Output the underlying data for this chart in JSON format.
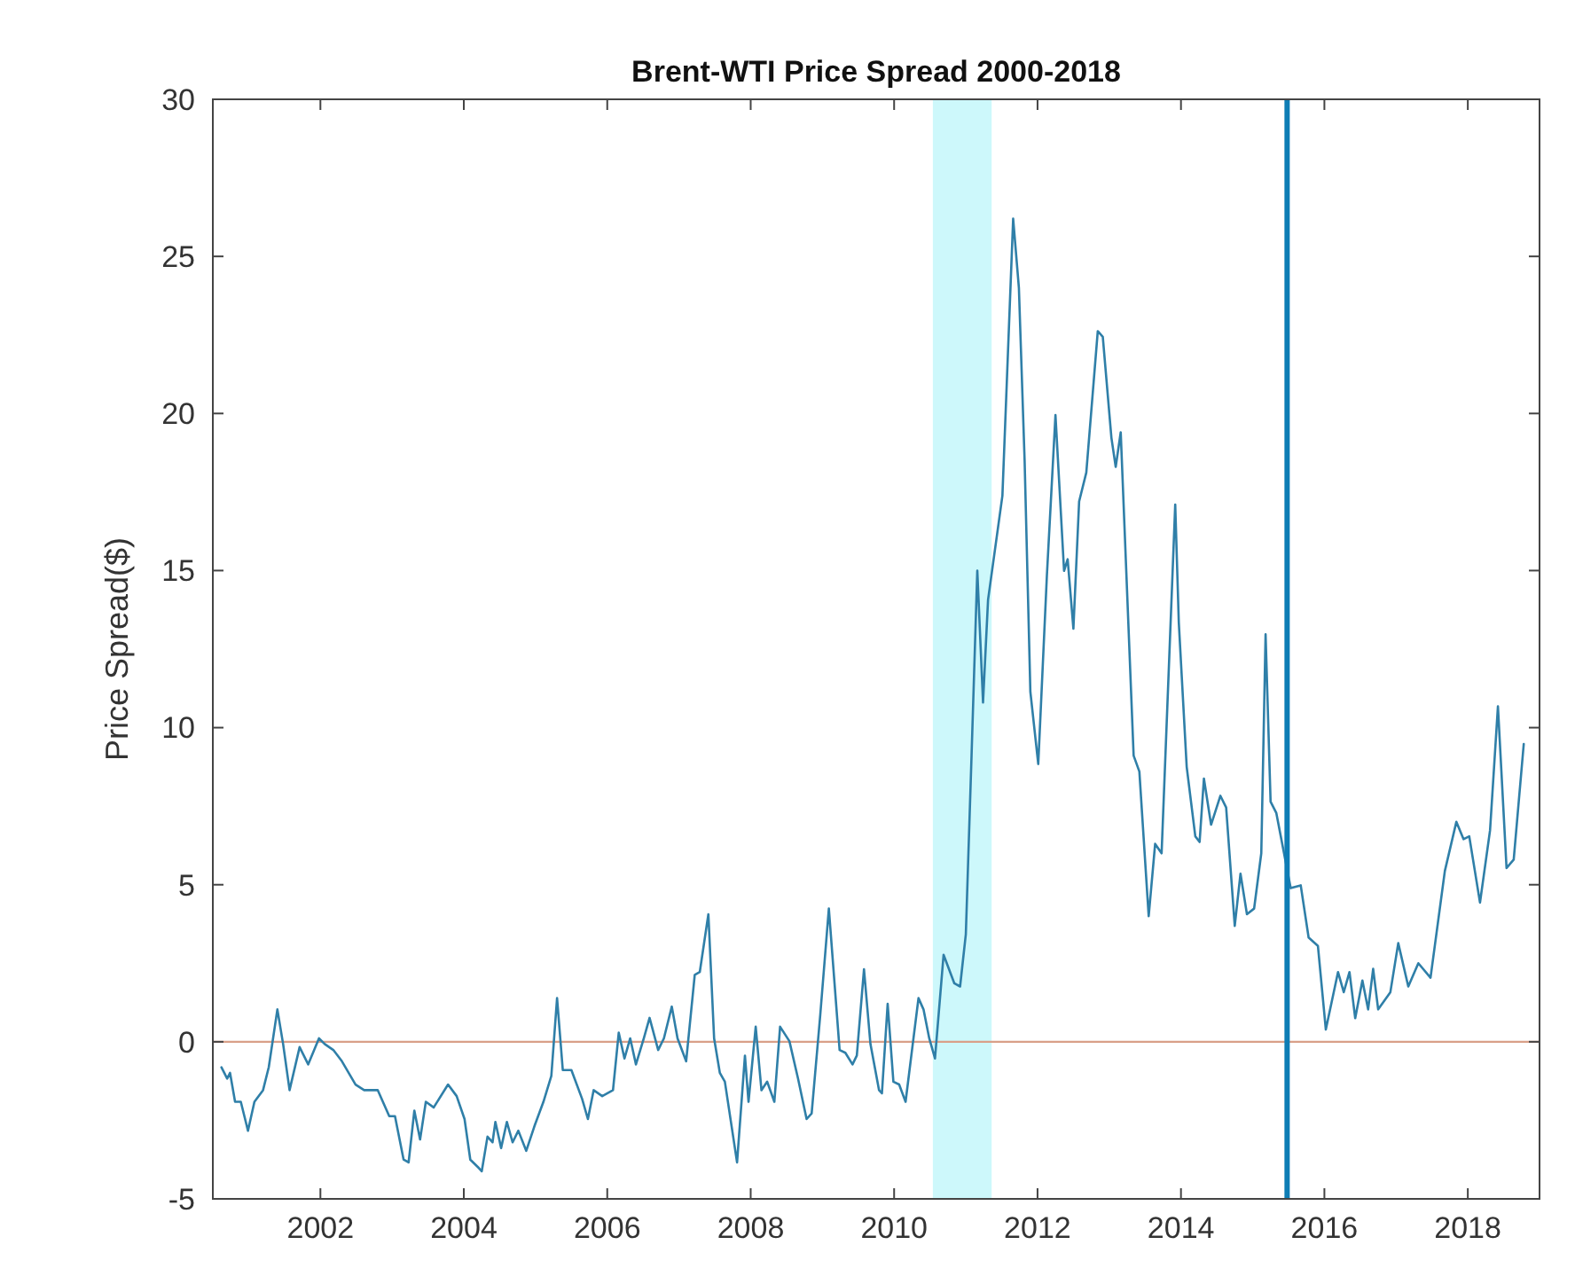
{
  "chart_data": {
    "type": "line",
    "title": "Brent-WTI Price Spread 2000-2018",
    "ylabel": "Price Spread($)",
    "xlim": [
      2000.5,
      2019.0
    ],
    "ylim": [
      -5,
      30
    ],
    "xticks": [
      2002,
      2004,
      2006,
      2008,
      2010,
      2012,
      2014,
      2016,
      2018
    ],
    "yticks": [
      -5,
      0,
      5,
      10,
      15,
      20,
      25,
      30
    ],
    "grid": false,
    "ref_lines": [
      {
        "axis": "y",
        "value": 0,
        "color": "#d9a088"
      },
      {
        "axis": "x",
        "value": 2015.48,
        "color": "#0e7db5"
      }
    ],
    "bands": [
      {
        "axis": "x",
        "from": 2010.54,
        "to": 2011.36,
        "color": "#cdf8fb"
      }
    ],
    "series": [
      {
        "color": "#2f7fa8",
        "x": [
          2000.62,
          2000.7,
          2000.74,
          2000.81,
          2000.89,
          2000.99,
          2001.08,
          2001.2,
          2001.28,
          2001.4,
          2001.48,
          2001.57,
          2001.71,
          2001.83,
          2001.98,
          2002.06,
          2002.18,
          2002.3,
          2002.49,
          2002.61,
          2002.8,
          2002.96,
          2003.04,
          2003.16,
          2003.23,
          2003.31,
          2003.39,
          2003.47,
          2003.58,
          2003.78,
          2003.9,
          2004.01,
          2004.09,
          2004.21,
          2004.25,
          2004.33,
          2004.4,
          2004.44,
          2004.52,
          2004.6,
          2004.68,
          2004.76,
          2004.87,
          2004.99,
          2005.11,
          2005.22,
          2005.3,
          2005.38,
          2005.5,
          2005.65,
          2005.73,
          2005.81,
          2005.93,
          2006.08,
          2006.16,
          2006.24,
          2006.32,
          2006.4,
          2006.51,
          2006.59,
          2006.71,
          2006.79,
          2006.9,
          2006.98,
          2007.1,
          2007.22,
          2007.29,
          2007.41,
          2007.49,
          2007.57,
          2007.64,
          2007.81,
          2007.92,
          2007.97,
          2008.07,
          2008.15,
          2008.23,
          2008.33,
          2008.41,
          2008.54,
          2008.66,
          2008.78,
          2008.85,
          2008.97,
          2009.09,
          2009.24,
          2009.32,
          2009.42,
          2009.48,
          2009.58,
          2009.67,
          2009.79,
          2009.83,
          2009.91,
          2009.99,
          2010.07,
          2010.16,
          2010.26,
          2010.34,
          2010.41,
          2010.49,
          2010.57,
          2010.69,
          2010.84,
          2010.92,
          2011.0,
          2011.08,
          2011.16,
          2011.24,
          2011.31,
          2011.51,
          2011.66,
          2011.74,
          2011.82,
          2011.9,
          2012.01,
          2012.13,
          2012.25,
          2012.37,
          2012.42,
          2012.5,
          2012.58,
          2012.68,
          2012.84,
          2012.91,
          2013.03,
          2013.09,
          2013.16,
          2013.34,
          2013.42,
          2013.55,
          2013.64,
          2013.73,
          2013.92,
          2013.97,
          2014.08,
          2014.2,
          2014.26,
          2014.32,
          2014.42,
          2014.55,
          2014.63,
          2014.75,
          2014.83,
          2014.92,
          2015.02,
          2015.12,
          2015.18,
          2015.25,
          2015.33,
          2015.53,
          2015.67,
          2015.78,
          2015.91,
          2016.02,
          2016.19,
          2016.27,
          2016.35,
          2016.43,
          2016.53,
          2016.61,
          2016.68,
          2016.75,
          2016.92,
          2017.03,
          2017.17,
          2017.31,
          2017.48,
          2017.68,
          2017.84,
          2017.94,
          2018.02,
          2018.17,
          2018.31,
          2018.42,
          2018.54,
          2018.64,
          2018.78
        ],
        "values": [
          -0.81,
          -1.17,
          -0.99,
          -1.91,
          -1.91,
          -2.83,
          -1.91,
          -1.54,
          -0.81,
          1.03,
          -0.07,
          -1.54,
          -0.17,
          -0.72,
          0.11,
          -0.07,
          -0.26,
          -0.62,
          -1.36,
          -1.54,
          -1.54,
          -2.37,
          -2.37,
          -3.75,
          -3.84,
          -2.19,
          -3.11,
          -1.91,
          -2.09,
          -1.36,
          -1.73,
          -2.46,
          -3.75,
          -4.02,
          -4.12,
          -3.02,
          -3.2,
          -2.55,
          -3.38,
          -2.55,
          -3.2,
          -2.83,
          -3.47,
          -2.65,
          -1.91,
          -1.09,
          1.39,
          -0.9,
          -0.9,
          -1.82,
          -2.46,
          -1.54,
          -1.73,
          -1.54,
          0.29,
          -0.53,
          0.11,
          -0.72,
          0.11,
          0.76,
          -0.26,
          0.11,
          1.12,
          0.11,
          -0.62,
          2.13,
          2.22,
          4.06,
          0.11,
          -0.99,
          -1.27,
          -3.84,
          -0.44,
          -1.91,
          0.48,
          -1.54,
          -1.27,
          -1.91,
          0.48,
          0.02,
          -1.17,
          -2.46,
          -2.28,
          0.85,
          4.24,
          -0.26,
          -0.35,
          -0.72,
          -0.44,
          2.31,
          -0.07,
          -1.54,
          -1.64,
          1.21,
          -1.27,
          -1.36,
          -1.91,
          -0.07,
          1.39,
          1.03,
          0.11,
          -0.53,
          2.77,
          1.86,
          1.76,
          3.42,
          9.12,
          15.0,
          10.8,
          14.07,
          17.38,
          26.2,
          24.0,
          18.49,
          11.14,
          8.84,
          14.82,
          19.95,
          14.99,
          15.36,
          13.15,
          17.2,
          18.12,
          22.62,
          22.44,
          19.23,
          18.3,
          19.4,
          9.11,
          8.6,
          4.0,
          6.3,
          6.0,
          17.1,
          13.34,
          8.75,
          6.54,
          6.36,
          8.38,
          6.91,
          7.83,
          7.46,
          3.69,
          5.35,
          4.06,
          4.24,
          6.0,
          12.97,
          7.64,
          7.28,
          4.89,
          4.98,
          3.32,
          3.05,
          0.39,
          2.22,
          1.58,
          2.22,
          0.75,
          1.95,
          1.03,
          2.32,
          1.03,
          1.58,
          3.14,
          1.76,
          2.5,
          2.04,
          5.44,
          7.0,
          6.45,
          6.54,
          4.43,
          6.73,
          10.68,
          5.53,
          5.8,
          9.48
        ]
      }
    ]
  }
}
